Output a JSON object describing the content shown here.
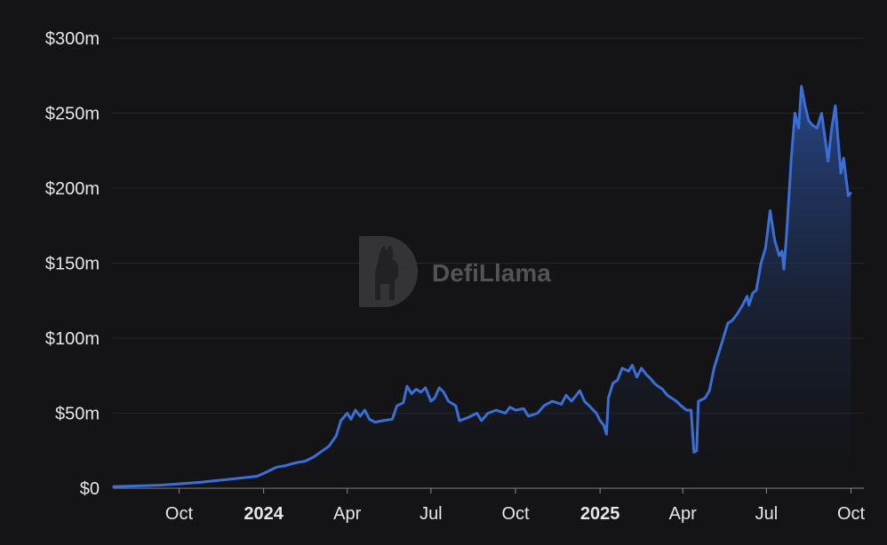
{
  "colors": {
    "background": "#141416",
    "line": "#3b6fd8",
    "area_top": "#2b4f9c",
    "grid": "#26262a",
    "text": "#e6e6e6"
  },
  "watermark": {
    "icon": "llama-logo-icon",
    "text": "DefiLlama"
  },
  "chart_data": {
    "type": "area",
    "title": "",
    "xlabel": "",
    "ylabel": "",
    "grid": "horizontal",
    "ylim": [
      0,
      300
    ],
    "yunit": "$m",
    "x_range": [
      "2023-07-21",
      "2025-10-15"
    ],
    "yticks": [
      {
        "value": 0,
        "label": "$0"
      },
      {
        "value": 50,
        "label": "$50m"
      },
      {
        "value": 100,
        "label": "$100m"
      },
      {
        "value": 150,
        "label": "$150m"
      },
      {
        "value": 200,
        "label": "$200m"
      },
      {
        "value": 250,
        "label": "$250m"
      },
      {
        "value": 300,
        "label": "$300m"
      }
    ],
    "xticks": [
      {
        "date": "2023-10-01",
        "label": "Oct",
        "bold": false
      },
      {
        "date": "2024-01-01",
        "label": "2024",
        "bold": true
      },
      {
        "date": "2024-04-01",
        "label": "Apr",
        "bold": false
      },
      {
        "date": "2024-07-01",
        "label": "Jul",
        "bold": false
      },
      {
        "date": "2024-10-01",
        "label": "Oct",
        "bold": false
      },
      {
        "date": "2025-01-01",
        "label": "2025",
        "bold": true
      },
      {
        "date": "2025-04-01",
        "label": "Apr",
        "bold": false
      },
      {
        "date": "2025-07-01",
        "label": "Jul",
        "bold": false
      },
      {
        "date": "2025-10-01",
        "label": "Oct",
        "bold": false
      }
    ],
    "points": [
      [
        "2023-07-21",
        1
      ],
      [
        "2023-08-15",
        1.5
      ],
      [
        "2023-09-10",
        2
      ],
      [
        "2023-10-05",
        3
      ],
      [
        "2023-10-25",
        4
      ],
      [
        "2023-11-10",
        5
      ],
      [
        "2023-11-25",
        6
      ],
      [
        "2023-12-10",
        7
      ],
      [
        "2023-12-25",
        8
      ],
      [
        "2024-01-05",
        11
      ],
      [
        "2024-01-15",
        14
      ],
      [
        "2024-01-25",
        15
      ],
      [
        "2024-02-05",
        17
      ],
      [
        "2024-02-15",
        18
      ],
      [
        "2024-02-25",
        21
      ],
      [
        "2024-03-05",
        25
      ],
      [
        "2024-03-12",
        28
      ],
      [
        "2024-03-20",
        35
      ],
      [
        "2024-03-25",
        45
      ],
      [
        "2024-04-01",
        50
      ],
      [
        "2024-04-05",
        46
      ],
      [
        "2024-04-10",
        52
      ],
      [
        "2024-04-15",
        48
      ],
      [
        "2024-04-20",
        52
      ],
      [
        "2024-04-25",
        46
      ],
      [
        "2024-05-01",
        44
      ],
      [
        "2024-05-10",
        45
      ],
      [
        "2024-05-20",
        46
      ],
      [
        "2024-05-25",
        55
      ],
      [
        "2024-06-01",
        57
      ],
      [
        "2024-06-05",
        68
      ],
      [
        "2024-06-10",
        63
      ],
      [
        "2024-06-15",
        66
      ],
      [
        "2024-06-20",
        64
      ],
      [
        "2024-06-25",
        67
      ],
      [
        "2024-07-01",
        58
      ],
      [
        "2024-07-05",
        60
      ],
      [
        "2024-07-10",
        67
      ],
      [
        "2024-07-15",
        64
      ],
      [
        "2024-07-20",
        58
      ],
      [
        "2024-07-28",
        55
      ],
      [
        "2024-08-01",
        45
      ],
      [
        "2024-08-10",
        47
      ],
      [
        "2024-08-20",
        50
      ],
      [
        "2024-08-25",
        45
      ],
      [
        "2024-09-01",
        50
      ],
      [
        "2024-09-10",
        52
      ],
      [
        "2024-09-20",
        50
      ],
      [
        "2024-09-25",
        54
      ],
      [
        "2024-10-01",
        52
      ],
      [
        "2024-10-10",
        53
      ],
      [
        "2024-10-15",
        48
      ],
      [
        "2024-10-25",
        50
      ],
      [
        "2024-11-01",
        55
      ],
      [
        "2024-11-10",
        58
      ],
      [
        "2024-11-20",
        56
      ],
      [
        "2024-11-25",
        62
      ],
      [
        "2024-12-01",
        58
      ],
      [
        "2024-12-10",
        65
      ],
      [
        "2024-12-15",
        58
      ],
      [
        "2024-12-20",
        55
      ],
      [
        "2024-12-28",
        50
      ],
      [
        "2025-01-01",
        45
      ],
      [
        "2025-01-05",
        42
      ],
      [
        "2025-01-08",
        36
      ],
      [
        "2025-01-10",
        60
      ],
      [
        "2025-01-15",
        70
      ],
      [
        "2025-01-20",
        72
      ],
      [
        "2025-01-25",
        80
      ],
      [
        "2025-02-01",
        78
      ],
      [
        "2025-02-05",
        82
      ],
      [
        "2025-02-10",
        74
      ],
      [
        "2025-02-15",
        80
      ],
      [
        "2025-02-20",
        76
      ],
      [
        "2025-02-25",
        73
      ],
      [
        "2025-03-01",
        70
      ],
      [
        "2025-03-05",
        68
      ],
      [
        "2025-03-10",
        66
      ],
      [
        "2025-03-15",
        62
      ],
      [
        "2025-03-20",
        60
      ],
      [
        "2025-03-25",
        58
      ],
      [
        "2025-03-30",
        55
      ],
      [
        "2025-04-05",
        52
      ],
      [
        "2025-04-10",
        52
      ],
      [
        "2025-04-13",
        24
      ],
      [
        "2025-04-16",
        25
      ],
      [
        "2025-04-18",
        58
      ],
      [
        "2025-04-25",
        60
      ],
      [
        "2025-04-30",
        65
      ],
      [
        "2025-05-05",
        80
      ],
      [
        "2025-05-10",
        90
      ],
      [
        "2025-05-15",
        100
      ],
      [
        "2025-05-20",
        110
      ],
      [
        "2025-05-25",
        112
      ],
      [
        "2025-05-30",
        116
      ],
      [
        "2025-06-05",
        122
      ],
      [
        "2025-06-10",
        128
      ],
      [
        "2025-06-12",
        122
      ],
      [
        "2025-06-16",
        130
      ],
      [
        "2025-06-20",
        132
      ],
      [
        "2025-06-25",
        150
      ],
      [
        "2025-06-30",
        160
      ],
      [
        "2025-07-05",
        185
      ],
      [
        "2025-07-10",
        165
      ],
      [
        "2025-07-15",
        155
      ],
      [
        "2025-07-18",
        158
      ],
      [
        "2025-07-20",
        146
      ],
      [
        "2025-07-23",
        170
      ],
      [
        "2025-07-28",
        220
      ],
      [
        "2025-08-01",
        250
      ],
      [
        "2025-08-05",
        240
      ],
      [
        "2025-08-08",
        268
      ],
      [
        "2025-08-12",
        255
      ],
      [
        "2025-08-16",
        245
      ],
      [
        "2025-08-20",
        242
      ],
      [
        "2025-08-25",
        240
      ],
      [
        "2025-08-30",
        250
      ],
      [
        "2025-09-03",
        232
      ],
      [
        "2025-09-06",
        218
      ],
      [
        "2025-09-10",
        240
      ],
      [
        "2025-09-14",
        255
      ],
      [
        "2025-09-17",
        232
      ],
      [
        "2025-09-20",
        210
      ],
      [
        "2025-09-23",
        220
      ],
      [
        "2025-09-26",
        205
      ],
      [
        "2025-09-28",
        195
      ],
      [
        "2025-10-01",
        197
      ]
    ]
  }
}
